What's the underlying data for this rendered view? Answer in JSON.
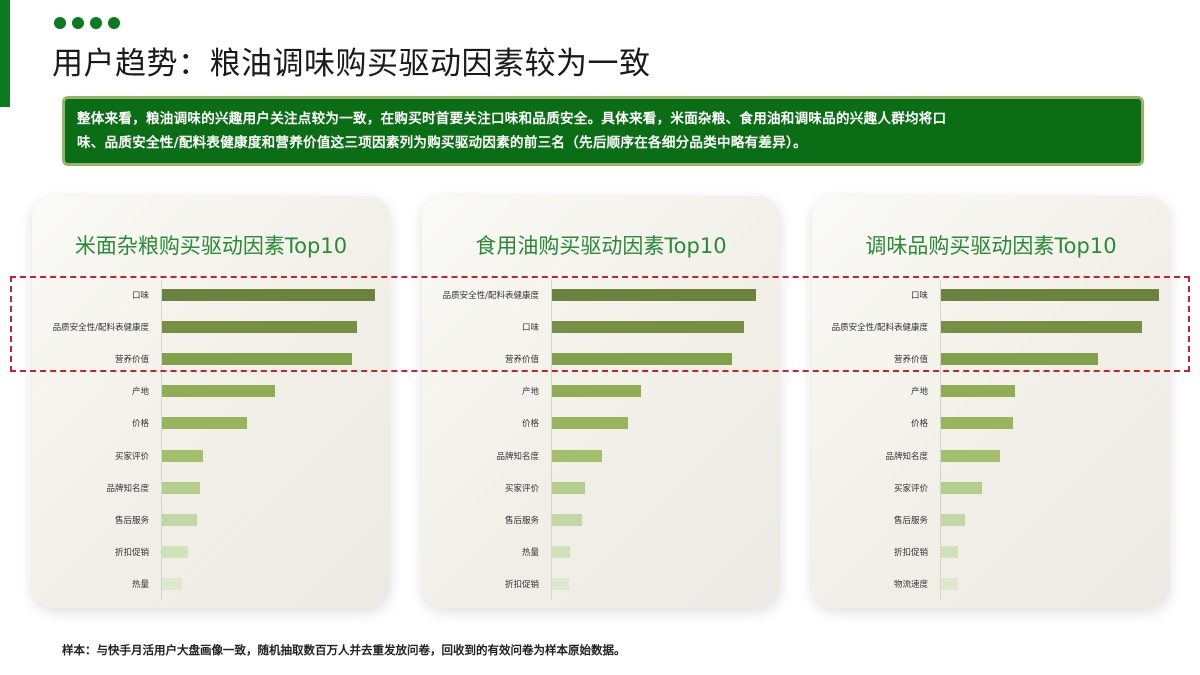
{
  "header": {
    "title": "用户趋势：粮油调味购买驱动因素较为一致",
    "dots": 4,
    "accent_color": "#0b7a20"
  },
  "summary": {
    "line1": "整体来看，粮油调味的兴趣用户关注点较为一致，在购买时首要关注口味和品质安全。具体来看，米面杂粮、食用油和调味品的兴趣人群均将口",
    "line2": "味、品质安全性/配料表健康度和营养价值这三项因素列为购买驱动因素的前三名（先后顺序在各细分品类中略有差异）。"
  },
  "footnote": "样本：与快手月活用户大盘画像一致，随机抽取数百万人并去重发放问卷，回收到的有效问卷为样本原始数据。",
  "highlight": {
    "description": "Top 3 factors highlighted across all three charts",
    "color": "#c8232a"
  },
  "bar_colors": [
    "#6a8440",
    "#768f45",
    "#80a04c",
    "#8fad55",
    "#96b55c",
    "#a2c06c",
    "#b3cd8d",
    "#c2d8a4",
    "#d0e2b9",
    "#dde9cd"
  ],
  "chart_data": [
    {
      "type": "bar",
      "orientation": "horizontal",
      "title": "米面杂粮购买驱动因素Top10",
      "categories": [
        "口味",
        "品质安全性/配料表健康度",
        "营养价值",
        "产地",
        "价格",
        "买家评价",
        "品牌知名度",
        "售后服务",
        "折扣促销",
        "热量"
      ],
      "values": [
        213,
        195,
        190,
        113,
        85,
        41,
        38,
        35,
        26,
        20
      ],
      "value_unit": "relative bar length (px, no axis labels shown)",
      "xlabel": "",
      "ylabel": "",
      "grid": false,
      "legend": null
    },
    {
      "type": "bar",
      "orientation": "horizontal",
      "title": "食用油购买驱动因素Top10",
      "categories": [
        "品质安全性/配料表健康度",
        "口味",
        "营养价值",
        "产地",
        "价格",
        "品牌知名度",
        "买家评价",
        "售后服务",
        "热量",
        "折扣促销"
      ],
      "values": [
        204,
        192,
        180,
        89,
        76,
        50,
        33,
        30,
        18,
        17
      ],
      "value_unit": "relative bar length (px, no axis labels shown)",
      "xlabel": "",
      "ylabel": "",
      "grid": false,
      "legend": null
    },
    {
      "type": "bar",
      "orientation": "horizontal",
      "title": "调味品购买驱动因素Top10",
      "categories": [
        "口味",
        "品质安全性/配料表健康度",
        "营养价值",
        "产地",
        "价格",
        "品牌知名度",
        "买家评价",
        "售后服务",
        "折扣促销",
        "物流速度"
      ],
      "values": [
        218,
        201,
        157,
        74,
        72,
        59,
        41,
        24,
        17,
        17
      ],
      "value_unit": "relative bar length (px, no axis labels shown)",
      "xlabel": "",
      "ylabel": "",
      "grid": false,
      "legend": null
    }
  ]
}
